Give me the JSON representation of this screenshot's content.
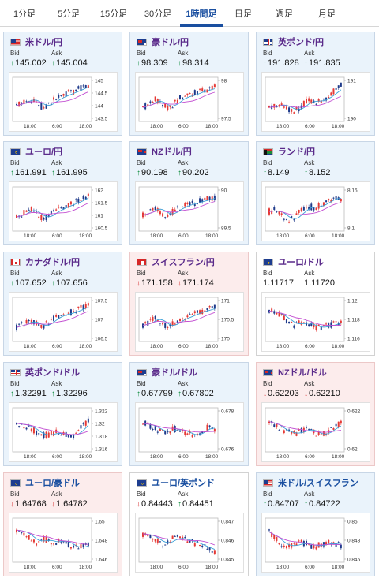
{
  "tabs": [
    "1分足",
    "5分足",
    "15分足",
    "30分足",
    "1時間足",
    "日足",
    "週足",
    "月足"
  ],
  "active_tab": "1時間足",
  "labels": {
    "bid": "Bid",
    "ask": "Ask"
  },
  "colors": {
    "up": "#0a8a3a",
    "down": "#d21f1f",
    "candle_up": "#e53935",
    "candle_down": "#1e3a8a",
    "ma_short": "#3aa0d8",
    "ma_long": "#c24ed1",
    "active_tab": "#1a4fa0"
  },
  "cards": [
    {
      "pair": "米ドル/円",
      "bid": "145.002",
      "ask": "145.004",
      "bid_dir": "up",
      "ask_dir": "up",
      "flag": "us",
      "state": "up",
      "yticks": [
        "145",
        "144.5",
        "144",
        "143.5"
      ],
      "xticks": [
        "18:00",
        "6:00",
        "18:00"
      ],
      "trend": [
        0.35,
        0.45,
        0.55,
        0.45,
        0.3,
        0.4,
        0.55,
        0.6,
        0.7,
        0.75,
        0.85,
        0.9
      ]
    },
    {
      "pair": "豪ドル/円",
      "bid": "98.309",
      "ask": "98.314",
      "bid_dir": "up",
      "ask_dir": "up",
      "flag": "au",
      "state": "up",
      "yticks": [
        "98",
        "97.5"
      ],
      "xticks": [
        "18:00",
        "6:00",
        "18:00"
      ],
      "trend": [
        0.3,
        0.4,
        0.55,
        0.35,
        0.3,
        0.45,
        0.6,
        0.6,
        0.7,
        0.75,
        0.8,
        0.85
      ]
    },
    {
      "pair": "英ポンド/円",
      "bid": "191.828",
      "ask": "191.835",
      "bid_dir": "up",
      "ask_dir": "up",
      "flag": "gb",
      "state": "up",
      "yticks": [
        "191",
        "190"
      ],
      "xticks": [
        "18:00",
        "6:00",
        "18:00"
      ],
      "trend": [
        0.3,
        0.35,
        0.4,
        0.25,
        0.2,
        0.35,
        0.5,
        0.45,
        0.5,
        0.6,
        0.75,
        0.9
      ]
    },
    {
      "pair": "ユーロ/円",
      "bid": "161.991",
      "ask": "161.995",
      "bid_dir": "up",
      "ask_dir": "up",
      "flag": "eu",
      "state": "up",
      "yticks": [
        "162",
        "161.5",
        "161",
        "160.5"
      ],
      "xticks": [
        "18:00",
        "6:00",
        "18:00"
      ],
      "trend": [
        0.3,
        0.4,
        0.55,
        0.4,
        0.25,
        0.35,
        0.5,
        0.55,
        0.65,
        0.7,
        0.8,
        0.9
      ]
    },
    {
      "pair": "NZドル/円",
      "bid": "90.198",
      "ask": "90.202",
      "bid_dir": "up",
      "ask_dir": "up",
      "flag": "nz",
      "state": "up",
      "yticks": [
        "90",
        "89.5"
      ],
      "xticks": [
        "18:00",
        "6:00",
        "18:00"
      ],
      "trend": [
        0.35,
        0.45,
        0.6,
        0.4,
        0.35,
        0.5,
        0.6,
        0.65,
        0.7,
        0.75,
        0.8,
        0.85
      ]
    },
    {
      "pair": "ランド/円",
      "bid": "8.149",
      "ask": "8.152",
      "bid_dir": "up",
      "ask_dir": "up",
      "flag": "za",
      "state": "up",
      "yticks": [
        "8.15",
        "8.1"
      ],
      "xticks": [
        "18:00",
        "6:00",
        "18:00"
      ],
      "trend": [
        0.45,
        0.5,
        0.35,
        0.2,
        0.3,
        0.5,
        0.6,
        0.55,
        0.65,
        0.75,
        0.85,
        0.8
      ]
    },
    {
      "pair": "カナダドル/円",
      "bid": "107.652",
      "ask": "107.656",
      "bid_dir": "up",
      "ask_dir": "up",
      "flag": "ca",
      "state": "up",
      "yticks": [
        "107.5",
        "107",
        "106.5"
      ],
      "xticks": [
        "18:00",
        "6:00",
        "18:00"
      ],
      "trend": [
        0.3,
        0.4,
        0.5,
        0.4,
        0.3,
        0.45,
        0.6,
        0.65,
        0.7,
        0.75,
        0.85,
        0.9
      ]
    },
    {
      "pair": "スイスフラン/円",
      "bid": "171.158",
      "ask": "171.174",
      "bid_dir": "down",
      "ask_dir": "down",
      "flag": "ch",
      "state": "down",
      "yticks": [
        "171",
        "170.5",
        "170"
      ],
      "xticks": [
        "18:00",
        "6:00",
        "18:00"
      ],
      "trend": [
        0.35,
        0.45,
        0.6,
        0.4,
        0.3,
        0.45,
        0.55,
        0.6,
        0.7,
        0.75,
        0.8,
        0.85
      ]
    },
    {
      "pair": "ユーロ/ドル",
      "bid": "1.11717",
      "ask": "1.11720",
      "bid_dir": "",
      "ask_dir": "",
      "flag": "eu",
      "state": "flat",
      "yticks": [
        "1.12",
        "1.118",
        "1.116"
      ],
      "xticks": [
        "18:00",
        "6:00",
        "18:00"
      ],
      "trend": [
        0.75,
        0.7,
        0.6,
        0.45,
        0.35,
        0.45,
        0.4,
        0.3,
        0.3,
        0.35,
        0.4,
        0.45
      ]
    },
    {
      "pair": "英ポンド/ドル",
      "bid": "1.32291",
      "ask": "1.32296",
      "bid_dir": "up",
      "ask_dir": "up",
      "flag": "gb",
      "state": "up",
      "yticks": [
        "1.322",
        "1.32",
        "1.318",
        "1.316"
      ],
      "xticks": [
        "18:00",
        "6:00",
        "18:00"
      ],
      "trend": [
        0.7,
        0.65,
        0.6,
        0.45,
        0.35,
        0.4,
        0.45,
        0.4,
        0.35,
        0.4,
        0.6,
        0.8
      ]
    },
    {
      "pair": "豪ドル/ドル",
      "bid": "0.67799",
      "ask": "0.67802",
      "bid_dir": "up",
      "ask_dir": "up",
      "flag": "au",
      "state": "up",
      "yticks": [
        "0.678",
        "0.676"
      ],
      "xticks": [
        "18:00",
        "6:00",
        "18:00"
      ],
      "trend": [
        0.7,
        0.65,
        0.55,
        0.45,
        0.5,
        0.55,
        0.5,
        0.4,
        0.35,
        0.5,
        0.6,
        0.55
      ]
    },
    {
      "pair": "NZドル/ドル",
      "bid": "0.62203",
      "ask": "0.62210",
      "bid_dir": "down",
      "ask_dir": "down",
      "flag": "nz",
      "state": "down",
      "yticks": [
        "0.622",
        "0.62"
      ],
      "xticks": [
        "18:00",
        "6:00",
        "18:00"
      ],
      "trend": [
        0.75,
        0.65,
        0.5,
        0.45,
        0.4,
        0.5,
        0.55,
        0.45,
        0.35,
        0.5,
        0.6,
        0.7
      ]
    },
    {
      "pair": "ユーロ/豪ドル",
      "bid": "1.64768",
      "ask": "1.64782",
      "bid_dir": "down",
      "ask_dir": "down",
      "flag": "eu",
      "state": "down",
      "yticks": [
        "1.65",
        "1.648",
        "1.646"
      ],
      "xticks": [
        "18:00",
        "6:00",
        "18:00"
      ],
      "trend": [
        0.8,
        0.75,
        0.6,
        0.45,
        0.55,
        0.5,
        0.45,
        0.55,
        0.4,
        0.3,
        0.35,
        0.4
      ]
    },
    {
      "pair": "ユーロ/英ポンド",
      "bid": "0.84443",
      "ask": "0.84451",
      "bid_dir": "down",
      "ask_dir": "up",
      "flag": "eu",
      "state": "flat",
      "yticks": [
        "0.847",
        "0.846",
        "0.845"
      ],
      "xticks": [
        "18:00",
        "6:00",
        "18:00"
      ],
      "trend": [
        0.7,
        0.65,
        0.55,
        0.4,
        0.5,
        0.6,
        0.55,
        0.5,
        0.45,
        0.35,
        0.3,
        0.2
      ]
    },
    {
      "pair": "米ドル/スイスフラン",
      "bid": "0.84707",
      "ask": "0.84722",
      "bid_dir": "up",
      "ask_dir": "up",
      "flag": "us",
      "state": "up",
      "yticks": [
        "0.85",
        "0.848",
        "0.846"
      ],
      "xticks": [
        "18:00",
        "6:00",
        "18:00"
      ],
      "trend": [
        0.75,
        0.55,
        0.4,
        0.35,
        0.4,
        0.45,
        0.4,
        0.35,
        0.4,
        0.45,
        0.4,
        0.38
      ]
    }
  ]
}
